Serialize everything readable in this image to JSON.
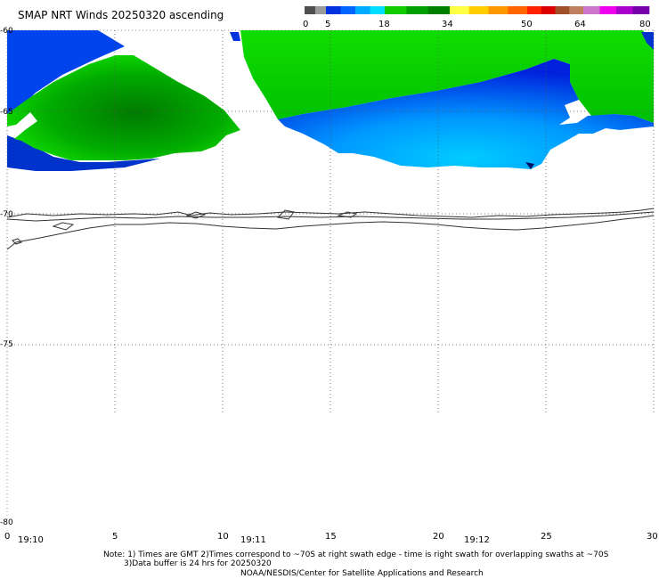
{
  "title": "SMAP NRT Winds 20250320 ascending",
  "colorbar": {
    "labels": [
      "0",
      "5",
      "18",
      "34",
      "50",
      "64",
      "80"
    ],
    "bands": [
      {
        "colors": [
          "#505050",
          "#9a9a9a"
        ]
      },
      {
        "colors": [
          "#0033dd",
          "#0066ff",
          "#00aaff",
          "#00ddff"
        ]
      },
      {
        "colors": [
          "#11cc00",
          "#00a000",
          "#008000"
        ]
      },
      {
        "colors": [
          "#ffff44",
          "#ffcc00",
          "#ff9900",
          "#ff6600"
        ]
      },
      {
        "colors": [
          "#ff2200",
          "#dd0000",
          "#a05028",
          "#c08060"
        ]
      },
      {
        "colors": [
          "#cc77cc",
          "#ee00ee",
          "#aa00cc",
          "#7700aa"
        ]
      }
    ]
  },
  "axes": {
    "lat_labels": [
      "-60",
      "-65",
      "-70",
      "-75",
      "-80"
    ],
    "x_labels": [
      "0",
      "5",
      "10",
      "15",
      "20",
      "25",
      "30"
    ],
    "time_labels": [
      "19:10",
      "19:11",
      "19:12"
    ]
  },
  "legend_colors": {
    "green": "#00cc00",
    "dark_green": "#008800",
    "blue": "#0044ee",
    "light_blue": "#00aaff",
    "dark_blue": "#0000cc"
  },
  "notes": {
    "line1": "Note: 1) Times are GMT 2)Times correspond to ~70S at right swath edge - time is right swath for overlapping swaths at ~70S",
    "line2": "3)Data buffer is 24 hrs for 20250320",
    "line3": "NOAA/NESDIS/Center for Satellite Applications and Research"
  }
}
